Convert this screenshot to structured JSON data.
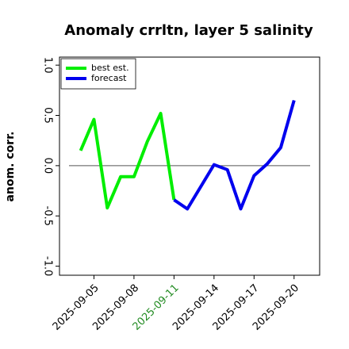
{
  "chart_data": {
    "type": "line",
    "title": "Anomaly crrltn, layer 5 salinity",
    "y_label": "anom. corr.",
    "series": [
      {
        "name": "best est.",
        "color": "#00ee00",
        "x": [
          "2025-09-04",
          "2025-09-05",
          "2025-09-06",
          "2025-09-07",
          "2025-09-08",
          "2025-09-09",
          "2025-09-10",
          "2025-09-11"
        ],
        "values": [
          0.15,
          0.46,
          -0.42,
          -0.11,
          -0.11,
          0.24,
          0.52,
          -0.34
        ]
      },
      {
        "name": "forecast",
        "color": "#0000ee",
        "x": [
          "2025-09-11",
          "2025-09-12",
          "2025-09-13",
          "2025-09-14",
          "2025-09-15",
          "2025-09-16",
          "2025-09-17",
          "2025-09-18",
          "2025-09-19",
          "2025-09-20"
        ],
        "values": [
          -0.34,
          -0.43,
          -0.21,
          0.01,
          -0.04,
          -0.43,
          -0.1,
          0.02,
          0.18,
          0.65
        ]
      }
    ],
    "reference_line": 0,
    "xlim": [
      "2025-09-02T10:00",
      "2025-09-21T22:00"
    ],
    "xticks": [
      "2025-09-05",
      "2025-09-08",
      "2025-09-11",
      "2025-09-14",
      "2025-09-17",
      "2025-09-20"
    ],
    "xtick_label_colors": [
      "#000000",
      "#000000",
      "#228b22",
      "#000000",
      "#000000",
      "#000000"
    ],
    "ylim": [
      -1.09,
      1.08
    ],
    "yticks": [
      {
        "value": -1,
        "label": "-1.0"
      },
      {
        "value": -0.5,
        "label": "-0.5"
      },
      {
        "value": 0,
        "label": "0.0"
      },
      {
        "value": 0.5,
        "label": "0.5"
      },
      {
        "value": 1,
        "label": "1.0"
      }
    ],
    "legend": "upper left"
  }
}
